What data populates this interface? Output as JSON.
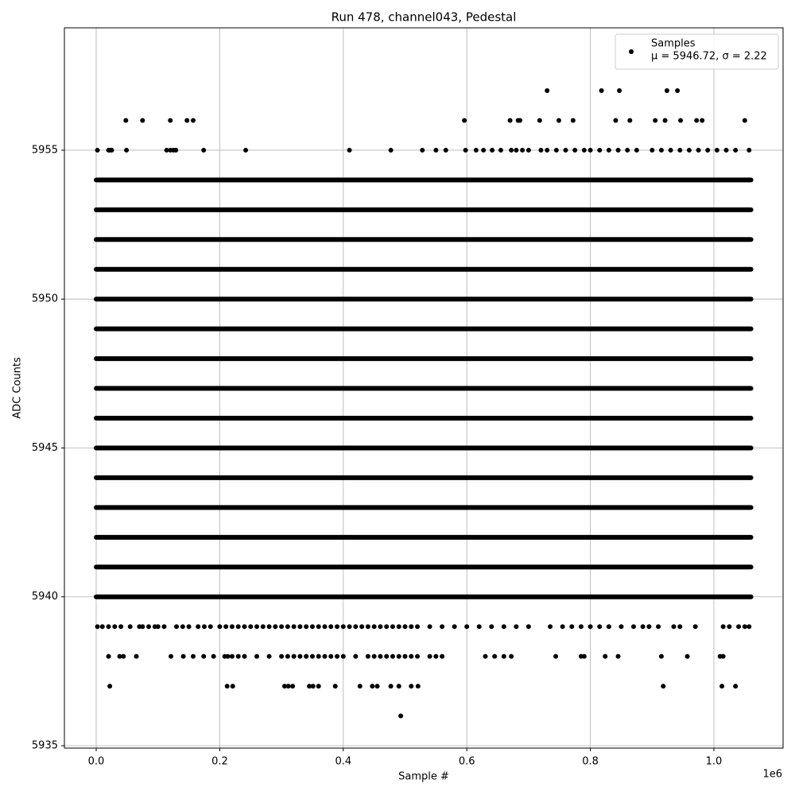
{
  "chart_data": {
    "type": "scatter",
    "title": "Run 478, channel043, Pedestal",
    "xlabel": "Sample #",
    "ylabel": "ADC Counts",
    "x_offset_label": "1e6",
    "xlim": [
      -0.0515,
      1.112
    ],
    "ylim": [
      5934.92,
      5959.11
    ],
    "xticks": [
      {
        "value": 0,
        "label": "0.0"
      },
      0.2,
      0.4,
      0.6,
      0.8,
      {
        "value": 1,
        "label": "1.0"
      }
    ],
    "yticks": [
      5935,
      5940,
      5945,
      5950,
      5955
    ],
    "grid": true,
    "legend": "upper right",
    "color": "#000000",
    "legend_name": "Samples",
    "legend_note": "μ = 5946.72, σ = 2.22",
    "dense_x": [
      0,
      1.06
    ],
    "dense_levels": [
      5940,
      5941,
      5942,
      5943,
      5944,
      5945,
      5946,
      5947,
      5948,
      5949,
      5950,
      5951,
      5952,
      5953,
      5954
    ],
    "sparse": [
      {
        "y": 5957,
        "x": [
          0.73,
          0.818,
          0.847,
          0.924,
          0.941
        ]
      },
      {
        "y": 5956,
        "x": [
          0.048,
          0.075,
          0.12,
          0.147,
          0.157,
          0.596,
          0.67,
          0.683,
          0.686,
          0.718,
          0.749,
          0.772,
          0.841,
          0.864,
          0.905,
          0.921,
          0.946,
          0.972,
          0.981,
          1.05
        ]
      },
      {
        "y": 5955,
        "x": [
          0.002,
          0.02,
          0.022,
          0.025,
          0.049,
          0.114,
          0.12,
          0.125,
          0.129,
          0.174,
          0.242,
          0.41,
          0.477,
          0.528,
          0.55,
          0.566,
          0.598,
          0.615,
          0.627,
          0.641,
          0.655,
          0.672,
          0.68,
          0.69,
          0.7,
          0.72,
          0.73,
          0.745,
          0.76,
          0.775,
          0.79,
          0.8,
          0.815,
          0.83,
          0.845,
          0.86,
          0.875,
          0.9,
          0.915,
          0.93,
          0.945,
          0.96,
          0.975,
          0.99,
          1.005,
          1.02,
          1.035,
          1.057
        ]
      },
      {
        "y": 5939,
        "x": [
          0.002,
          0.01,
          0.02,
          0.03,
          0.04,
          0.055,
          0.07,
          0.075,
          0.085,
          0.095,
          0.1,
          0.11,
          0.13,
          0.14,
          0.15,
          0.165,
          0.175,
          0.185,
          0.2,
          0.21,
          0.22,
          0.23,
          0.24,
          0.25,
          0.26,
          0.27,
          0.28,
          0.29,
          0.3,
          0.31,
          0.32,
          0.33,
          0.34,
          0.35,
          0.36,
          0.37,
          0.38,
          0.39,
          0.4,
          0.41,
          0.42,
          0.43,
          0.44,
          0.45,
          0.46,
          0.47,
          0.48,
          0.49,
          0.5,
          0.51,
          0.52,
          0.54,
          0.56,
          0.58,
          0.6,
          0.62,
          0.64,
          0.66,
          0.68,
          0.7,
          0.735,
          0.755,
          0.77,
          0.785,
          0.8,
          0.815,
          0.83,
          0.85,
          0.87,
          0.885,
          0.895,
          0.91,
          0.935,
          0.945,
          0.97,
          1.015,
          1.025,
          1.04,
          1.05,
          1.057
        ]
      },
      {
        "y": 5938,
        "x": [
          0.02,
          0.038,
          0.044,
          0.065,
          0.121,
          0.141,
          0.157,
          0.174,
          0.19,
          0.208,
          0.213,
          0.22,
          0.23,
          0.24,
          0.26,
          0.28,
          0.3,
          0.31,
          0.32,
          0.33,
          0.34,
          0.35,
          0.36,
          0.37,
          0.38,
          0.39,
          0.4,
          0.42,
          0.44,
          0.45,
          0.46,
          0.47,
          0.48,
          0.49,
          0.5,
          0.51,
          0.52,
          0.54,
          0.55,
          0.56,
          0.63,
          0.645,
          0.66,
          0.672,
          0.744,
          0.785,
          0.79,
          0.824,
          0.845,
          0.915,
          0.957,
          1.01,
          1.015
        ]
      },
      {
        "y": 5937,
        "x": [
          0.022,
          0.212,
          0.221,
          0.305,
          0.311,
          0.318,
          0.345,
          0.351,
          0.36,
          0.387,
          0.427,
          0.447,
          0.455,
          0.477,
          0.49,
          0.51,
          0.521,
          0.918,
          1.013,
          1.035
        ]
      },
      {
        "y": 5936,
        "x": [
          0.493
        ]
      }
    ]
  }
}
